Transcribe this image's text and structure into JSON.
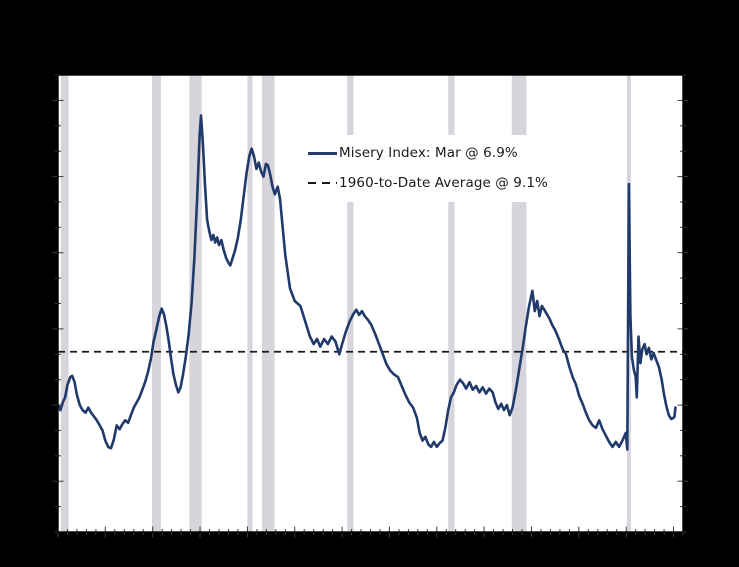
{
  "window": {
    "outer_background": "#000000",
    "title": ""
  },
  "legend": {
    "series_label": "Misery Index: Mar @ 6.9%",
    "average_label": "1960-to-Date Average @ 9.1%"
  },
  "chart_data": {
    "type": "line",
    "title": "",
    "xlabel": "",
    "ylabel": "",
    "xlim": [
      1960,
      2026
    ],
    "ylim": [
      2,
      20
    ],
    "grid": false,
    "legend_position": "upper-right-of-center",
    "plot_background": "#ffffff",
    "band_color": "#d8d4dc",
    "axis_color": "#000000",
    "tick_color": "#3c3c3c",
    "x_tick_interval_years": 1,
    "x_major_tick_every_years": 5,
    "y_tick_interval": 1,
    "y_major_ticks": [
      4,
      7,
      10,
      13,
      16,
      19
    ],
    "tick_labels_visible": false,
    "recession_bands": [
      [
        1960.29,
        1961.12
      ],
      [
        1969.92,
        1970.88
      ],
      [
        1973.87,
        1975.17
      ],
      [
        1980.0,
        1980.54
      ],
      [
        1981.54,
        1982.87
      ],
      [
        1990.54,
        1991.21
      ],
      [
        2001.21,
        2001.87
      ],
      [
        2007.92,
        2009.46
      ],
      [
        2020.08,
        2020.5
      ]
    ],
    "series": [
      {
        "name": "Misery Index",
        "legend_label": "Misery Index: Mar @ 6.9%",
        "latest_month": "Mar",
        "latest_value_pct": 6.9,
        "color": "#1f3a6b",
        "style": "solid",
        "line_width": 2.6,
        "points": [
          [
            1960.0,
            7.0
          ],
          [
            1960.25,
            6.8
          ],
          [
            1960.5,
            7.1
          ],
          [
            1960.75,
            7.3
          ],
          [
            1961.0,
            7.8
          ],
          [
            1961.3,
            8.1
          ],
          [
            1961.5,
            8.15
          ],
          [
            1961.75,
            7.9
          ],
          [
            1962.0,
            7.4
          ],
          [
            1962.3,
            7.0
          ],
          [
            1962.6,
            6.8
          ],
          [
            1962.9,
            6.7
          ],
          [
            1963.2,
            6.9
          ],
          [
            1963.5,
            6.7
          ],
          [
            1963.8,
            6.55
          ],
          [
            1964.1,
            6.4
          ],
          [
            1964.4,
            6.2
          ],
          [
            1964.7,
            6.0
          ],
          [
            1965.0,
            5.6
          ],
          [
            1965.3,
            5.35
          ],
          [
            1965.6,
            5.3
          ],
          [
            1965.9,
            5.65
          ],
          [
            1966.2,
            6.2
          ],
          [
            1966.5,
            6.05
          ],
          [
            1966.8,
            6.25
          ],
          [
            1967.1,
            6.4
          ],
          [
            1967.4,
            6.3
          ],
          [
            1967.7,
            6.6
          ],
          [
            1968.0,
            6.9
          ],
          [
            1968.3,
            7.1
          ],
          [
            1968.6,
            7.3
          ],
          [
            1968.9,
            7.6
          ],
          [
            1969.2,
            7.9
          ],
          [
            1969.5,
            8.3
          ],
          [
            1969.8,
            8.8
          ],
          [
            1970.1,
            9.5
          ],
          [
            1970.4,
            10.0
          ],
          [
            1970.7,
            10.5
          ],
          [
            1970.95,
            10.8
          ],
          [
            1971.2,
            10.55
          ],
          [
            1971.45,
            10.1
          ],
          [
            1971.7,
            9.5
          ],
          [
            1971.95,
            8.8
          ],
          [
            1972.2,
            8.2
          ],
          [
            1972.45,
            7.8
          ],
          [
            1972.7,
            7.5
          ],
          [
            1972.95,
            7.7
          ],
          [
            1973.2,
            8.2
          ],
          [
            1973.5,
            8.9
          ],
          [
            1973.8,
            9.8
          ],
          [
            1974.1,
            11.0
          ],
          [
            1974.4,
            12.8
          ],
          [
            1974.7,
            15.2
          ],
          [
            1974.95,
            17.6
          ],
          [
            1975.1,
            18.4
          ],
          [
            1975.3,
            17.3
          ],
          [
            1975.5,
            15.8
          ],
          [
            1975.75,
            14.3
          ],
          [
            1976.0,
            13.8
          ],
          [
            1976.2,
            13.5
          ],
          [
            1976.4,
            13.7
          ],
          [
            1976.6,
            13.4
          ],
          [
            1976.8,
            13.6
          ],
          [
            1977.0,
            13.3
          ],
          [
            1977.25,
            13.5
          ],
          [
            1977.5,
            13.1
          ],
          [
            1977.75,
            12.8
          ],
          [
            1978.0,
            12.6
          ],
          [
            1978.2,
            12.5
          ],
          [
            1978.45,
            12.8
          ],
          [
            1978.7,
            13.1
          ],
          [
            1979.0,
            13.6
          ],
          [
            1979.3,
            14.3
          ],
          [
            1979.6,
            15.2
          ],
          [
            1979.9,
            16.1
          ],
          [
            1980.2,
            16.8
          ],
          [
            1980.45,
            17.1
          ],
          [
            1980.7,
            16.8
          ],
          [
            1980.95,
            16.3
          ],
          [
            1981.2,
            16.55
          ],
          [
            1981.45,
            16.2
          ],
          [
            1981.7,
            16.0
          ],
          [
            1981.95,
            16.5
          ],
          [
            1982.15,
            16.45
          ],
          [
            1982.4,
            16.1
          ],
          [
            1982.65,
            15.6
          ],
          [
            1982.9,
            15.3
          ],
          [
            1983.2,
            15.6
          ],
          [
            1983.45,
            15.1
          ],
          [
            1983.7,
            14.1
          ],
          [
            1984.0,
            12.9
          ],
          [
            1984.5,
            11.6
          ],
          [
            1985.0,
            11.1
          ],
          [
            1985.6,
            10.9
          ],
          [
            1986.1,
            10.3
          ],
          [
            1986.6,
            9.7
          ],
          [
            1987.0,
            9.4
          ],
          [
            1987.35,
            9.6
          ],
          [
            1987.7,
            9.3
          ],
          [
            1988.1,
            9.6
          ],
          [
            1988.5,
            9.4
          ],
          [
            1988.9,
            9.7
          ],
          [
            1989.3,
            9.5
          ],
          [
            1989.7,
            9.0
          ],
          [
            1990.0,
            9.4
          ],
          [
            1990.4,
            9.9
          ],
          [
            1990.8,
            10.3
          ],
          [
            1991.2,
            10.6
          ],
          [
            1991.5,
            10.75
          ],
          [
            1991.8,
            10.55
          ],
          [
            1992.1,
            10.7
          ],
          [
            1992.4,
            10.5
          ],
          [
            1992.75,
            10.35
          ],
          [
            1993.1,
            10.15
          ],
          [
            1993.5,
            9.8
          ],
          [
            1993.9,
            9.4
          ],
          [
            1994.3,
            9.0
          ],
          [
            1994.7,
            8.6
          ],
          [
            1995.1,
            8.35
          ],
          [
            1995.5,
            8.2
          ],
          [
            1995.9,
            8.1
          ],
          [
            1996.3,
            7.75
          ],
          [
            1996.7,
            7.4
          ],
          [
            1997.1,
            7.1
          ],
          [
            1997.5,
            6.9
          ],
          [
            1997.9,
            6.5
          ],
          [
            1998.2,
            5.9
          ],
          [
            1998.5,
            5.6
          ],
          [
            1998.8,
            5.75
          ],
          [
            1999.1,
            5.45
          ],
          [
            1999.4,
            5.35
          ],
          [
            1999.7,
            5.55
          ],
          [
            2000.0,
            5.35
          ],
          [
            2000.3,
            5.5
          ],
          [
            2000.6,
            5.6
          ],
          [
            2000.9,
            6.1
          ],
          [
            2001.2,
            6.8
          ],
          [
            2001.5,
            7.3
          ],
          [
            2001.8,
            7.5
          ],
          [
            2002.1,
            7.8
          ],
          [
            2002.45,
            8.0
          ],
          [
            2002.8,
            7.85
          ],
          [
            2003.1,
            7.65
          ],
          [
            2003.45,
            7.9
          ],
          [
            2003.8,
            7.6
          ],
          [
            2004.15,
            7.75
          ],
          [
            2004.5,
            7.5
          ],
          [
            2004.85,
            7.7
          ],
          [
            2005.2,
            7.45
          ],
          [
            2005.55,
            7.65
          ],
          [
            2005.9,
            7.5
          ],
          [
            2006.2,
            7.1
          ],
          [
            2006.5,
            6.85
          ],
          [
            2006.8,
            7.05
          ],
          [
            2007.1,
            6.8
          ],
          [
            2007.4,
            7.0
          ],
          [
            2007.7,
            6.6
          ],
          [
            2008.0,
            6.9
          ],
          [
            2008.35,
            7.6
          ],
          [
            2008.7,
            8.4
          ],
          [
            2009.05,
            9.2
          ],
          [
            2009.4,
            10.1
          ],
          [
            2009.75,
            10.9
          ],
          [
            2010.1,
            11.5
          ],
          [
            2010.35,
            10.7
          ],
          [
            2010.6,
            11.1
          ],
          [
            2010.85,
            10.5
          ],
          [
            2011.1,
            10.9
          ],
          [
            2011.35,
            10.75
          ],
          [
            2011.6,
            10.6
          ],
          [
            2011.9,
            10.4
          ],
          [
            2012.2,
            10.15
          ],
          [
            2012.5,
            9.95
          ],
          [
            2012.9,
            9.6
          ],
          [
            2013.3,
            9.2
          ],
          [
            2013.65,
            9.0
          ],
          [
            2014.0,
            8.5
          ],
          [
            2014.35,
            8.1
          ],
          [
            2014.7,
            7.8
          ],
          [
            2015.05,
            7.35
          ],
          [
            2015.4,
            7.05
          ],
          [
            2015.75,
            6.7
          ],
          [
            2016.1,
            6.4
          ],
          [
            2016.45,
            6.2
          ],
          [
            2016.8,
            6.1
          ],
          [
            2017.15,
            6.4
          ],
          [
            2017.5,
            6.05
          ],
          [
            2017.85,
            5.8
          ],
          [
            2018.2,
            5.55
          ],
          [
            2018.55,
            5.35
          ],
          [
            2018.9,
            5.55
          ],
          [
            2019.25,
            5.35
          ],
          [
            2019.6,
            5.6
          ],
          [
            2019.95,
            5.9
          ],
          [
            2020.12,
            5.25
          ],
          [
            2020.29,
            15.7
          ],
          [
            2020.45,
            10.5
          ],
          [
            2020.6,
            8.9
          ],
          [
            2020.8,
            8.4
          ],
          [
            2021.0,
            8.1
          ],
          [
            2021.12,
            7.3
          ],
          [
            2021.3,
            9.7
          ],
          [
            2021.5,
            8.65
          ],
          [
            2021.7,
            9.2
          ],
          [
            2021.95,
            9.4
          ],
          [
            2022.15,
            9.0
          ],
          [
            2022.4,
            9.25
          ],
          [
            2022.65,
            8.8
          ],
          [
            2022.9,
            9.05
          ],
          [
            2023.15,
            8.8
          ],
          [
            2023.45,
            8.5
          ],
          [
            2023.75,
            8.0
          ],
          [
            2024.0,
            7.4
          ],
          [
            2024.25,
            6.95
          ],
          [
            2024.5,
            6.6
          ],
          [
            2024.75,
            6.45
          ],
          [
            2025.0,
            6.5
          ],
          [
            2025.1,
            6.55
          ],
          [
            2025.2,
            6.9
          ]
        ]
      },
      {
        "name": "1960-to-Date Average",
        "legend_label": "1960-to-Date Average @ 9.1%",
        "value_pct": 9.1,
        "color": "#1a1a1a",
        "style": "dashed",
        "line_width": 1.8
      }
    ]
  }
}
